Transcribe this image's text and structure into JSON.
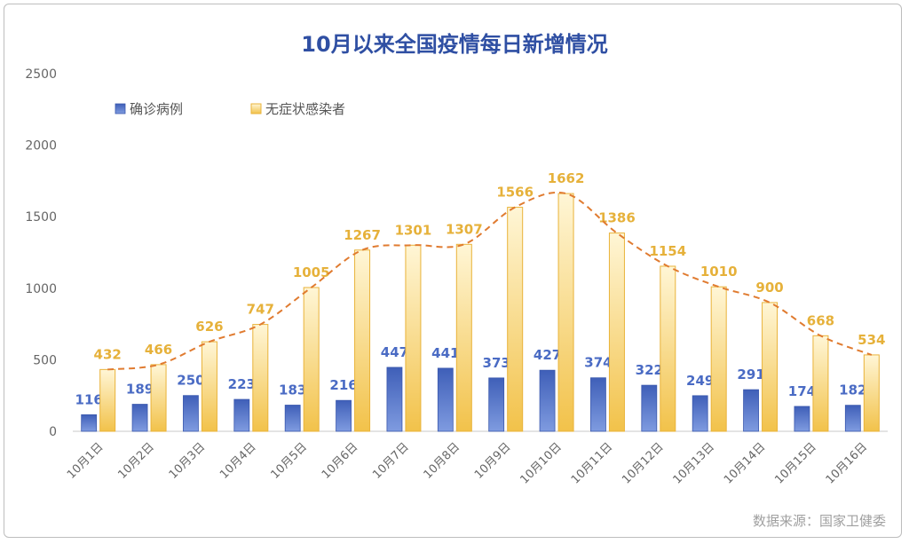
{
  "chart_data": {
    "type": "bar",
    "title": "10月以来全国疫情每日新增情况",
    "source": "数据来源：国家卫健委",
    "categories": [
      "10月1日",
      "10月2日",
      "10月3日",
      "10月4日",
      "10月5日",
      "10月6日",
      "10月7日",
      "10月8日",
      "10月9日",
      "10月10日",
      "10月11日",
      "10月12日",
      "10月13日",
      "10月14日",
      "10月15日",
      "10月16日"
    ],
    "series": [
      {
        "name": "确诊病例",
        "color": "#4a6bc4",
        "values": [
          116,
          189,
          250,
          223,
          183,
          216,
          447,
          441,
          373,
          427,
          374,
          322,
          249,
          291,
          174,
          182
        ]
      },
      {
        "name": "无症状感染者",
        "color": "#f2c24a",
        "values": [
          432,
          466,
          626,
          747,
          1005,
          1267,
          1301,
          1307,
          1566,
          1662,
          1386,
          1154,
          1010,
          900,
          668,
          534
        ]
      }
    ],
    "trendline": {
      "series": "无症状感染者",
      "color": "#e07b30",
      "style": "dashed"
    },
    "yticks": [
      "0",
      "500",
      "1000",
      "1500",
      "2000",
      "2500"
    ],
    "ylim": [
      0,
      2500
    ],
    "grid": false,
    "legend_position": "top-left",
    "label_colors": {
      "confirmed": "#4a6bc4",
      "asymptomatic": "#e6b13a"
    }
  }
}
